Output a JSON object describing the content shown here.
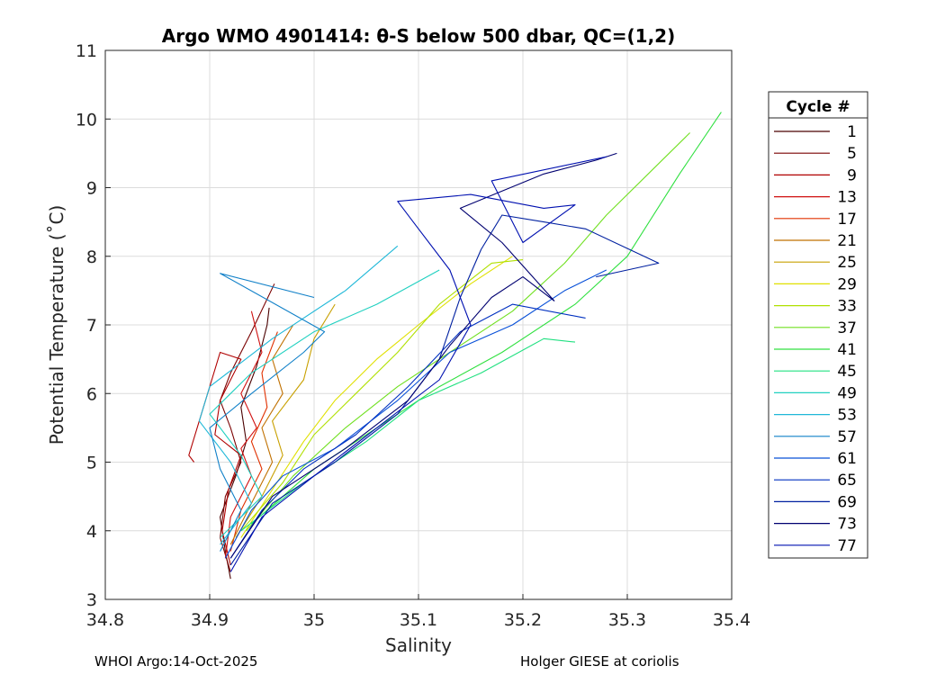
{
  "chart_data": {
    "type": "line",
    "title": "Argo WMO 4901414: θ-S below 500 dbar,  QC=(1,2)",
    "xlabel": "Salinity",
    "ylabel": "Potential Temperature (˚C)",
    "xlim": [
      34.8,
      35.4
    ],
    "ylim": [
      3,
      11
    ],
    "xticks": [
      "34.8",
      "34.9",
      "35",
      "35.1",
      "35.2",
      "35.3",
      "35.4"
    ],
    "yticks": [
      "3",
      "4",
      "5",
      "6",
      "7",
      "8",
      "9",
      "10",
      "11"
    ],
    "grid": true,
    "legend": {
      "title": "Cycle #",
      "position": "right",
      "entries": [
        {
          "label": "1",
          "color": "#4a0000"
        },
        {
          "label": "5",
          "color": "#7a0000"
        },
        {
          "label": "9",
          "color": "#b00000"
        },
        {
          "label": "13",
          "color": "#d01010"
        },
        {
          "label": "17",
          "color": "#e03000"
        },
        {
          "label": "21",
          "color": "#c07000"
        },
        {
          "label": "25",
          "color": "#c8a000"
        },
        {
          "label": "29",
          "color": "#e0e000"
        },
        {
          "label": "33",
          "color": "#b0e000"
        },
        {
          "label": "37",
          "color": "#70e020"
        },
        {
          "label": "41",
          "color": "#30e040"
        },
        {
          "label": "45",
          "color": "#20e080"
        },
        {
          "label": "49",
          "color": "#20d0c0"
        },
        {
          "label": "53",
          "color": "#20b8d8"
        },
        {
          "label": "57",
          "color": "#1080c8"
        },
        {
          "label": "61",
          "color": "#0850d8"
        },
        {
          "label": "65",
          "color": "#0030c0"
        },
        {
          "label": "69",
          "color": "#0020a0"
        },
        {
          "label": "73",
          "color": "#000070"
        },
        {
          "label": "77",
          "color": "#0010b0"
        }
      ]
    },
    "series": [
      {
        "name": "1",
        "color": "#4a0000",
        "points": [
          [
            34.92,
            3.3
          ],
          [
            34.915,
            3.7
          ],
          [
            34.91,
            4.2
          ],
          [
            34.925,
            4.8
          ],
          [
            34.935,
            5.3
          ],
          [
            34.93,
            5.8
          ],
          [
            34.945,
            6.4
          ],
          [
            34.955,
            7.0
          ],
          [
            34.957,
            7.25
          ]
        ]
      },
      {
        "name": "5",
        "color": "#7a0000",
        "points": [
          [
            34.92,
            3.4
          ],
          [
            34.91,
            3.9
          ],
          [
            34.915,
            4.5
          ],
          [
            34.93,
            5.0
          ],
          [
            34.92,
            5.5
          ],
          [
            34.91,
            5.9
          ],
          [
            34.92,
            6.3
          ],
          [
            34.94,
            6.9
          ],
          [
            34.962,
            7.6
          ]
        ]
      },
      {
        "name": "9",
        "color": "#b00000",
        "points": [
          [
            34.92,
            3.5
          ],
          [
            34.912,
            4.0
          ],
          [
            34.918,
            4.6
          ],
          [
            34.93,
            5.1
          ],
          [
            34.905,
            5.4
          ],
          [
            34.91,
            5.9
          ],
          [
            34.93,
            6.5
          ],
          [
            34.91,
            6.6
          ],
          [
            34.88,
            5.1
          ],
          [
            34.885,
            5.0
          ]
        ]
      },
      {
        "name": "13",
        "color": "#d01010",
        "points": [
          [
            34.915,
            3.6
          ],
          [
            34.92,
            4.2
          ],
          [
            34.94,
            4.8
          ],
          [
            34.93,
            5.2
          ],
          [
            34.945,
            5.5
          ],
          [
            34.93,
            6.0
          ],
          [
            34.95,
            6.6
          ],
          [
            34.94,
            7.2
          ]
        ]
      },
      {
        "name": "17",
        "color": "#e03000",
        "points": [
          [
            34.92,
            3.7
          ],
          [
            34.93,
            4.3
          ],
          [
            34.95,
            4.9
          ],
          [
            34.94,
            5.3
          ],
          [
            34.955,
            5.8
          ],
          [
            34.95,
            6.3
          ],
          [
            34.965,
            6.9
          ]
        ]
      },
      {
        "name": "21",
        "color": "#c07000",
        "points": [
          [
            34.92,
            3.8
          ],
          [
            34.94,
            4.4
          ],
          [
            34.96,
            5.0
          ],
          [
            34.95,
            5.5
          ],
          [
            34.97,
            6.0
          ],
          [
            34.96,
            6.5
          ],
          [
            34.98,
            7.0
          ]
        ]
      },
      {
        "name": "25",
        "color": "#c8a000",
        "points": [
          [
            34.925,
            3.9
          ],
          [
            34.95,
            4.5
          ],
          [
            34.97,
            5.1
          ],
          [
            34.96,
            5.6
          ],
          [
            34.99,
            6.2
          ],
          [
            35.0,
            6.8
          ],
          [
            35.02,
            7.3
          ]
        ]
      },
      {
        "name": "29",
        "color": "#e0e000",
        "points": [
          [
            34.93,
            3.9
          ],
          [
            34.96,
            4.6
          ],
          [
            34.99,
            5.3
          ],
          [
            35.02,
            5.9
          ],
          [
            35.06,
            6.5
          ],
          [
            35.1,
            7.0
          ],
          [
            35.15,
            7.6
          ],
          [
            35.19,
            8.0
          ]
        ]
      },
      {
        "name": "33",
        "color": "#b0e000",
        "points": [
          [
            34.93,
            4.0
          ],
          [
            34.97,
            4.7
          ],
          [
            35.0,
            5.4
          ],
          [
            35.04,
            6.0
          ],
          [
            35.08,
            6.6
          ],
          [
            35.12,
            7.3
          ],
          [
            35.17,
            7.9
          ],
          [
            35.2,
            7.95
          ]
        ]
      },
      {
        "name": "37",
        "color": "#70e020",
        "points": [
          [
            34.935,
            4.0
          ],
          [
            34.98,
            4.8
          ],
          [
            35.03,
            5.5
          ],
          [
            35.08,
            6.1
          ],
          [
            35.13,
            6.6
          ],
          [
            35.19,
            7.2
          ],
          [
            35.24,
            7.9
          ],
          [
            35.28,
            8.6
          ],
          [
            35.36,
            9.8
          ]
        ]
      },
      {
        "name": "41",
        "color": "#30e040",
        "points": [
          [
            34.94,
            4.1
          ],
          [
            35.0,
            4.9
          ],
          [
            35.06,
            5.5
          ],
          [
            35.12,
            6.1
          ],
          [
            35.18,
            6.6
          ],
          [
            35.25,
            7.3
          ],
          [
            35.3,
            8.0
          ],
          [
            35.35,
            9.2
          ],
          [
            35.39,
            10.1
          ]
        ]
      },
      {
        "name": "45",
        "color": "#20e080",
        "points": [
          [
            34.93,
            4.0
          ],
          [
            34.99,
            4.7
          ],
          [
            35.05,
            5.3
          ],
          [
            35.1,
            5.9
          ],
          [
            35.16,
            6.3
          ],
          [
            35.22,
            6.8
          ],
          [
            35.25,
            6.75
          ]
        ]
      },
      {
        "name": "49",
        "color": "#20d0c0",
        "points": [
          [
            34.91,
            3.9
          ],
          [
            34.95,
            4.5
          ],
          [
            34.93,
            5.1
          ],
          [
            34.9,
            5.7
          ],
          [
            34.94,
            6.3
          ],
          [
            35.0,
            6.9
          ],
          [
            35.06,
            7.3
          ],
          [
            35.12,
            7.8
          ]
        ]
      },
      {
        "name": "53",
        "color": "#20b8d8",
        "points": [
          [
            34.91,
            3.8
          ],
          [
            34.94,
            4.4
          ],
          [
            34.92,
            5.0
          ],
          [
            34.89,
            5.6
          ],
          [
            34.9,
            6.1
          ],
          [
            34.96,
            6.8
          ],
          [
            35.03,
            7.5
          ],
          [
            35.08,
            8.15
          ]
        ]
      },
      {
        "name": "57",
        "color": "#1080c8",
        "points": [
          [
            34.91,
            3.7
          ],
          [
            34.93,
            4.3
          ],
          [
            34.91,
            4.9
          ],
          [
            34.9,
            5.5
          ],
          [
            34.94,
            6.0
          ],
          [
            34.99,
            6.6
          ],
          [
            35.01,
            6.9
          ],
          [
            34.91,
            7.75
          ],
          [
            35.0,
            7.4
          ]
        ]
      },
      {
        "name": "61",
        "color": "#0850d8",
        "points": [
          [
            34.915,
            3.6
          ],
          [
            34.94,
            4.3
          ],
          [
            34.97,
            4.8
          ],
          [
            35.02,
            5.2
          ],
          [
            35.08,
            5.9
          ],
          [
            35.13,
            6.6
          ],
          [
            35.19,
            7.0
          ],
          [
            35.24,
            7.5
          ],
          [
            35.28,
            7.8
          ]
        ]
      },
      {
        "name": "65",
        "color": "#0030c0",
        "points": [
          [
            34.92,
            3.6
          ],
          [
            34.95,
            4.3
          ],
          [
            34.99,
            4.9
          ],
          [
            35.04,
            5.4
          ],
          [
            35.09,
            6.1
          ],
          [
            35.14,
            6.9
          ],
          [
            35.19,
            7.3
          ],
          [
            35.26,
            7.1
          ]
        ]
      },
      {
        "name": "69",
        "color": "#0020a0",
        "points": [
          [
            34.92,
            3.5
          ],
          [
            34.96,
            4.4
          ],
          [
            35.02,
            5.0
          ],
          [
            35.08,
            5.7
          ],
          [
            35.12,
            6.5
          ],
          [
            35.14,
            7.4
          ],
          [
            35.16,
            8.1
          ],
          [
            35.18,
            8.6
          ],
          [
            35.22,
            8.5
          ],
          [
            35.26,
            8.4
          ],
          [
            35.33,
            7.9
          ],
          [
            35.27,
            7.7
          ]
        ]
      },
      {
        "name": "73",
        "color": "#000070",
        "points": [
          [
            34.92,
            3.6
          ],
          [
            34.96,
            4.5
          ],
          [
            35.03,
            5.2
          ],
          [
            35.09,
            5.9
          ],
          [
            35.13,
            6.7
          ],
          [
            35.17,
            7.4
          ],
          [
            35.2,
            7.7
          ],
          [
            35.23,
            7.35
          ],
          [
            35.18,
            8.2
          ],
          [
            35.14,
            8.7
          ],
          [
            35.22,
            9.2
          ],
          [
            35.27,
            9.4
          ],
          [
            35.29,
            9.5
          ]
        ]
      },
      {
        "name": "77",
        "color": "#0010b0",
        "points": [
          [
            34.92,
            3.4
          ],
          [
            34.95,
            4.2
          ],
          [
            35.0,
            4.8
          ],
          [
            35.06,
            5.5
          ],
          [
            35.12,
            6.2
          ],
          [
            35.15,
            7.0
          ],
          [
            35.13,
            7.8
          ],
          [
            35.1,
            8.4
          ],
          [
            35.08,
            8.8
          ],
          [
            35.15,
            8.9
          ],
          [
            35.22,
            8.7
          ],
          [
            35.25,
            8.75
          ],
          [
            35.2,
            8.2
          ],
          [
            35.17,
            9.1
          ],
          [
            35.28,
            9.45
          ]
        ]
      }
    ]
  },
  "footer": {
    "left": "WHOI Argo:14-Oct-2025",
    "right": "Holger GIESE at coriolis"
  }
}
